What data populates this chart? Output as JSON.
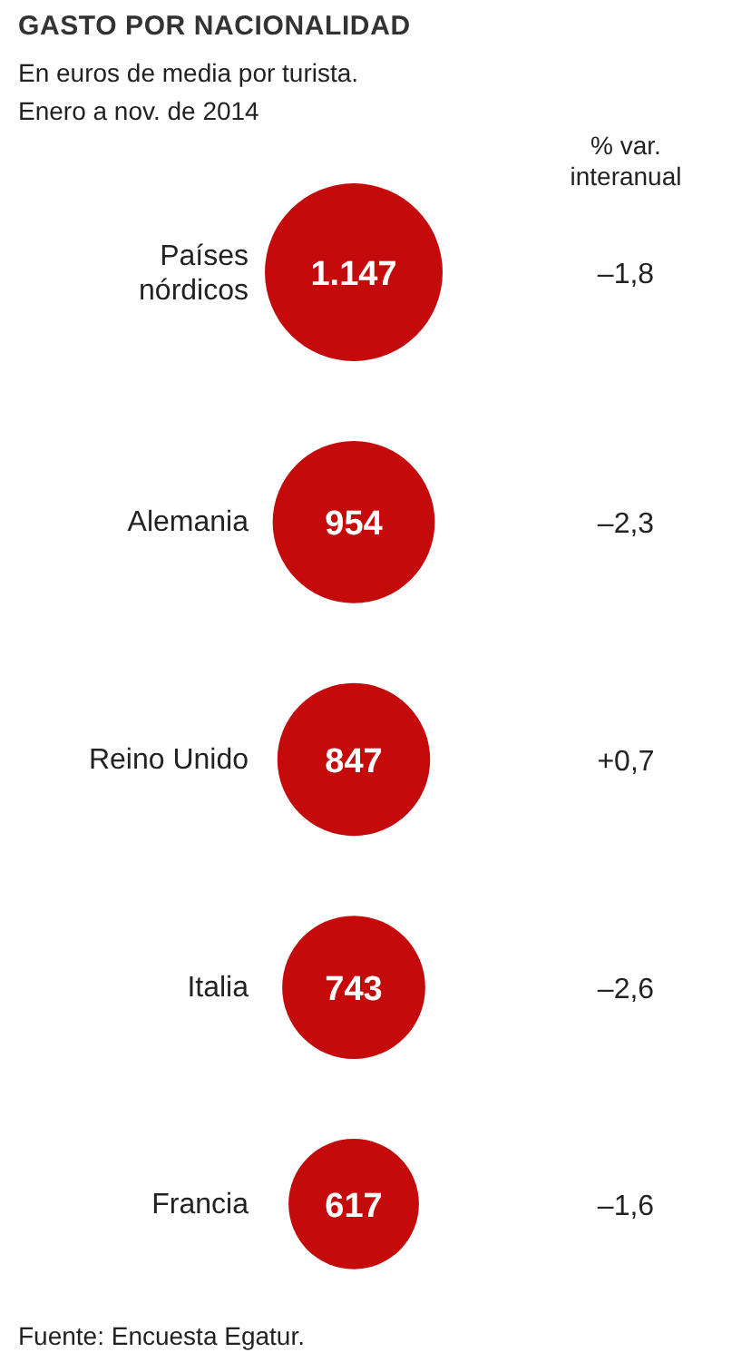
{
  "chart_data": {
    "type": "other",
    "title": "GASTO POR NACIONALIDAD",
    "subtitle": "En euros de media por turista.\nEnero a nov. de 2014",
    "categories": [
      "Países nórdicos",
      "Alemania",
      "Reino Unido",
      "Italia",
      "Francia"
    ],
    "series": [
      {
        "type": "bubble",
        "color": "#c40a0a",
        "values": [
          1147,
          954,
          847,
          743,
          617
        ],
        "value_labels": [
          "1.147",
          "954",
          "847",
          "743",
          "617"
        ]
      },
      {
        "type": "other",
        "name": "% var. interanual",
        "values": [
          -1.8,
          -2.3,
          0.7,
          -2.6,
          -1.6
        ],
        "value_labels": [
          "–1,8",
          "–2,3",
          "+0,7",
          "–2,6",
          "–1,6"
        ]
      }
    ],
    "annotations": [
      "Fuente: Encuesta Egatur."
    ]
  }
}
